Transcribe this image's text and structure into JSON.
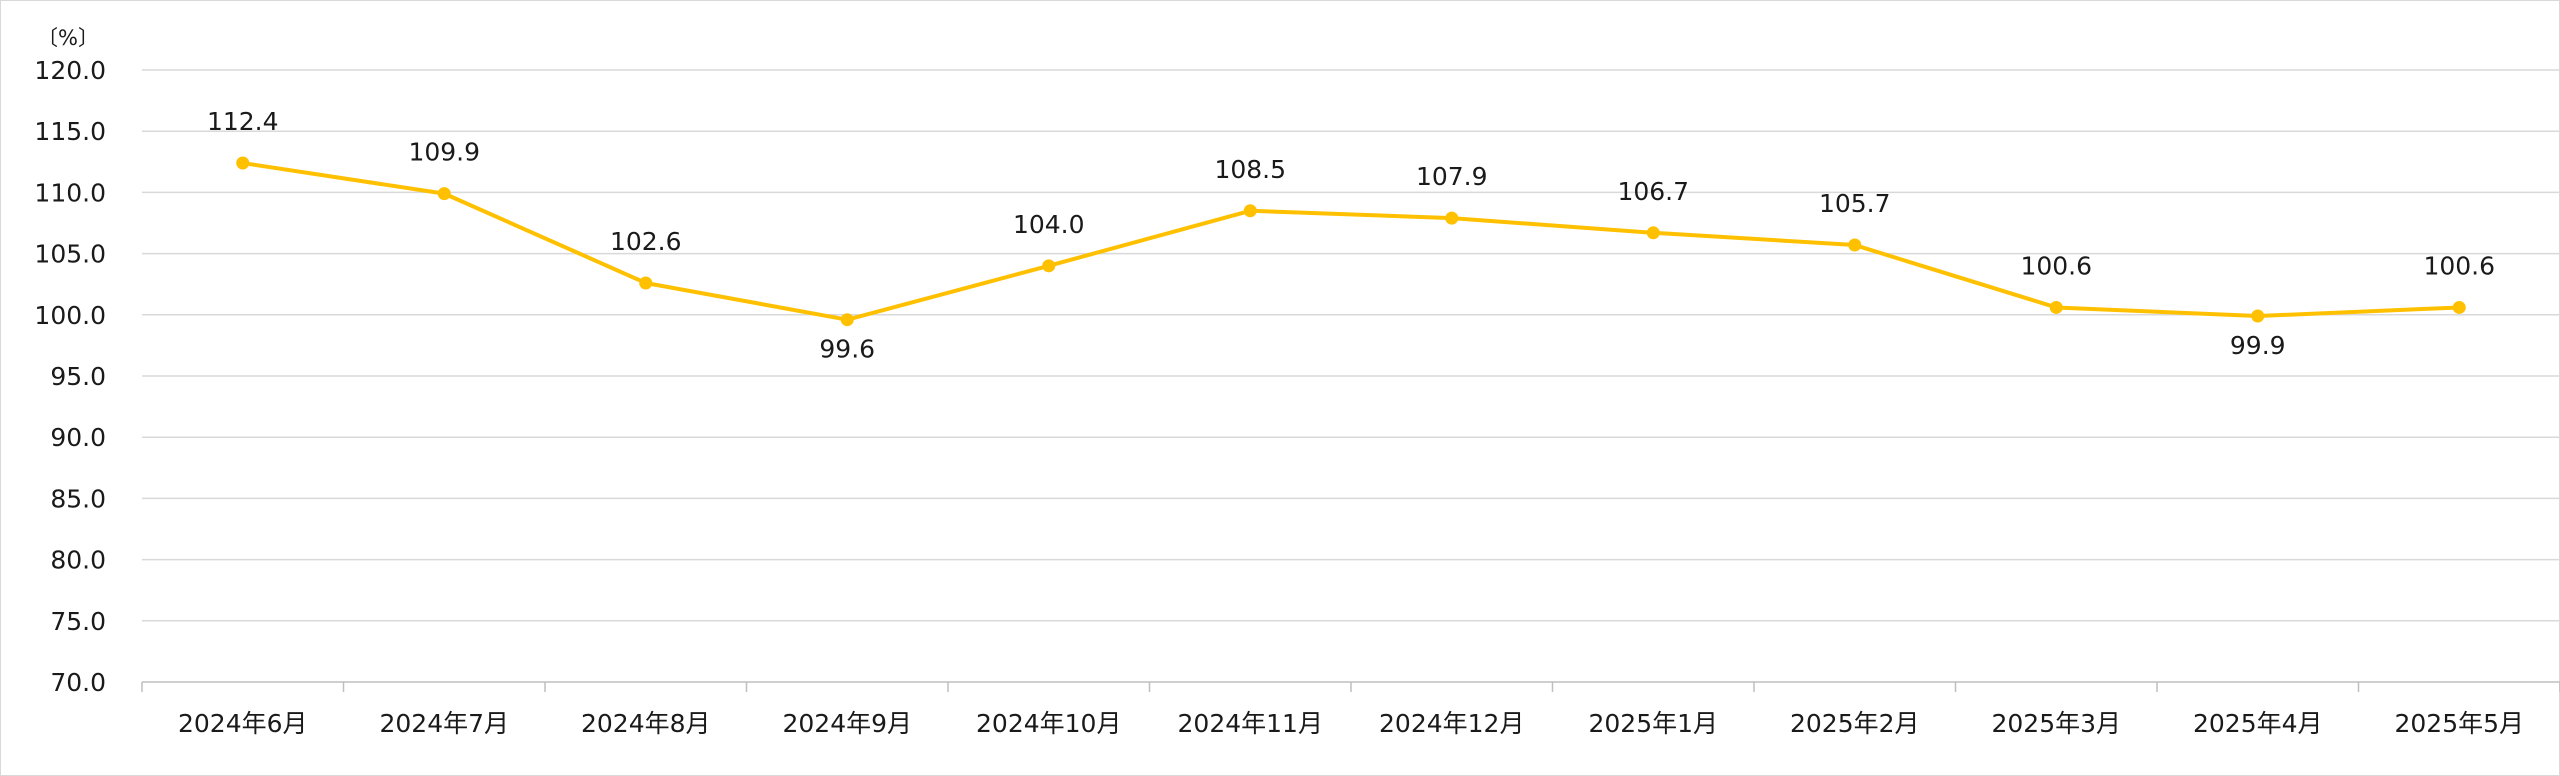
{
  "chart_data": {
    "type": "line",
    "title": "",
    "xlabel": "",
    "ylabel": "",
    "unit_label": "〔%〕",
    "ylim": [
      70.0,
      120.0
    ],
    "ystep": 5.0,
    "grid": true,
    "categories": [
      "2024年6月",
      "2024年7月",
      "2024年8月",
      "2024年9月",
      "2024年10月",
      "2024年11月",
      "2024年12月",
      "2025年1月",
      "2025年2月",
      "2025年3月",
      "2025年4月",
      "2025年5月"
    ],
    "series": [
      {
        "values": [
          112.4,
          109.9,
          102.6,
          99.6,
          104.0,
          108.5,
          107.9,
          106.7,
          105.7,
          100.6,
          99.9,
          100.6
        ],
        "data_labels": [
          "112.4",
          "109.9",
          "102.6",
          "99.6",
          "104.0",
          "108.5",
          "107.9",
          "106.7",
          "105.7",
          "100.6",
          "99.9",
          "100.6"
        ],
        "label_positions": [
          "above",
          "above",
          "above",
          "below",
          "above",
          "above",
          "above",
          "above",
          "above",
          "above",
          "below",
          "above"
        ],
        "color": "#FFC000"
      }
    ],
    "y_tick_labels": [
      "120.0",
      "115.0",
      "110.0",
      "105.0",
      "100.0",
      "95.0",
      "90.0",
      "85.0",
      "80.0",
      "75.0",
      "70.0"
    ]
  }
}
